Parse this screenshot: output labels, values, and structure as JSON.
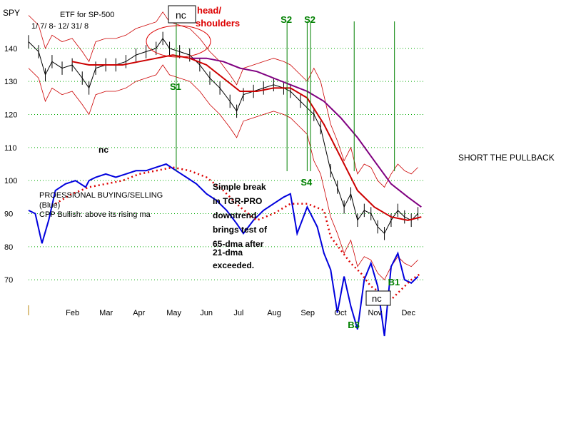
{
  "chart_data": {
    "type": "line",
    "title": "ETF for SP-500",
    "ticker": "SPY",
    "date_range": "1/ 7/ 8- 12/ 31/ 8",
    "x_months": [
      "Feb",
      "Mar",
      "Apr",
      "May",
      "Jun",
      "Jul",
      "Aug",
      "Sep",
      "Oct",
      "Nov",
      "Dec"
    ],
    "y_ticks": [
      140,
      130,
      120,
      110,
      100,
      90,
      80,
      70
    ],
    "ylim": [
      64,
      146
    ],
    "xlim_months": [
      0.2,
      12
    ],
    "series": [
      {
        "name": "PROESSIONAL BUYING/SELLING (Blue)",
        "color": "#0000dd",
        "points": [
          [
            0.2,
            91
          ],
          [
            0.4,
            90
          ],
          [
            0.6,
            81
          ],
          [
            0.8,
            88
          ],
          [
            1.0,
            97
          ],
          [
            1.3,
            99
          ],
          [
            1.6,
            100
          ],
          [
            1.9,
            98
          ],
          [
            2.0,
            100
          ],
          [
            2.2,
            101
          ],
          [
            2.5,
            102
          ],
          [
            2.8,
            101
          ],
          [
            3.1,
            102
          ],
          [
            3.4,
            103
          ],
          [
            3.7,
            103
          ],
          [
            4.0,
            104
          ],
          [
            4.3,
            105
          ],
          [
            4.6,
            103
          ],
          [
            4.9,
            101
          ],
          [
            5.2,
            99
          ],
          [
            5.5,
            96
          ],
          [
            5.8,
            94
          ],
          [
            6.1,
            91
          ],
          [
            6.4,
            87
          ],
          [
            6.6,
            84
          ],
          [
            6.9,
            88
          ],
          [
            7.2,
            91
          ],
          [
            7.5,
            93
          ],
          [
            7.8,
            95
          ],
          [
            8.0,
            96
          ],
          [
            8.2,
            84
          ],
          [
            8.5,
            92
          ],
          [
            8.8,
            86
          ],
          [
            9.0,
            78
          ],
          [
            9.2,
            73
          ],
          [
            9.4,
            60
          ],
          [
            9.6,
            71
          ],
          [
            9.8,
            62
          ],
          [
            10.0,
            55
          ],
          [
            10.2,
            70
          ],
          [
            10.4,
            75
          ],
          [
            10.6,
            68
          ],
          [
            10.8,
            53
          ],
          [
            11.0,
            74
          ],
          [
            11.2,
            78
          ],
          [
            11.4,
            70
          ],
          [
            11.6,
            69
          ],
          [
            11.8,
            71
          ]
        ]
      },
      {
        "name": "CPP 65-dma (red dotted)",
        "color": "#dd0000",
        "points": [
          [
            1.0,
            93
          ],
          [
            1.5,
            96
          ],
          [
            2.0,
            98
          ],
          [
            2.5,
            99
          ],
          [
            3.0,
            100
          ],
          [
            3.5,
            102
          ],
          [
            4.0,
            103
          ],
          [
            4.5,
            104
          ],
          [
            5.0,
            103
          ],
          [
            5.5,
            101
          ],
          [
            6.0,
            97
          ],
          [
            6.5,
            92
          ],
          [
            7.0,
            88
          ],
          [
            7.5,
            90
          ],
          [
            8.0,
            93
          ],
          [
            8.5,
            93
          ],
          [
            9.0,
            91
          ],
          [
            9.2,
            83
          ],
          [
            9.5,
            79
          ],
          [
            9.8,
            75
          ],
          [
            10.1,
            72
          ],
          [
            10.4,
            68
          ],
          [
            10.7,
            66
          ],
          [
            11.0,
            64
          ],
          [
            11.3,
            67
          ],
          [
            11.6,
            70
          ],
          [
            11.9,
            72
          ]
        ]
      },
      {
        "name": "SPY",
        "color": "#000000",
        "points": [
          [
            0.2,
            142
          ],
          [
            0.5,
            139
          ],
          [
            0.7,
            132
          ],
          [
            0.9,
            136
          ],
          [
            1.2,
            134
          ],
          [
            1.5,
            135
          ],
          [
            1.8,
            131
          ],
          [
            2.0,
            128
          ],
          [
            2.2,
            134
          ],
          [
            2.5,
            135
          ],
          [
            2.8,
            135
          ],
          [
            3.1,
            136
          ],
          [
            3.4,
            138
          ],
          [
            3.7,
            139
          ],
          [
            4.0,
            140
          ],
          [
            4.2,
            143
          ],
          [
            4.4,
            140
          ],
          [
            4.7,
            139
          ],
          [
            5.0,
            138
          ],
          [
            5.3,
            135
          ],
          [
            5.6,
            131
          ],
          [
            5.9,
            128
          ],
          [
            6.2,
            124
          ],
          [
            6.4,
            121
          ],
          [
            6.6,
            126
          ],
          [
            6.9,
            127
          ],
          [
            7.2,
            128
          ],
          [
            7.5,
            129
          ],
          [
            7.8,
            128
          ],
          [
            8.0,
            127
          ],
          [
            8.3,
            124
          ],
          [
            8.5,
            122
          ],
          [
            8.7,
            120
          ],
          [
            8.9,
            116
          ],
          [
            9.2,
            103
          ],
          [
            9.4,
            98
          ],
          [
            9.6,
            92
          ],
          [
            9.8,
            96
          ],
          [
            10.0,
            88
          ],
          [
            10.2,
            91
          ],
          [
            10.4,
            90
          ],
          [
            10.6,
            86
          ],
          [
            10.8,
            84
          ],
          [
            11.0,
            88
          ],
          [
            11.2,
            91
          ],
          [
            11.4,
            89
          ],
          [
            11.6,
            88
          ],
          [
            11.8,
            90
          ]
        ]
      },
      {
        "name": "purple moving average",
        "color": "#800080",
        "points": [
          [
            5.0,
            137
          ],
          [
            5.5,
            137
          ],
          [
            6.0,
            136
          ],
          [
            6.5,
            134
          ],
          [
            7.0,
            133
          ],
          [
            7.5,
            131
          ],
          [
            8.0,
            129
          ],
          [
            8.5,
            127
          ],
          [
            9.0,
            124
          ],
          [
            9.5,
            119
          ],
          [
            10.0,
            113
          ],
          [
            10.5,
            106
          ],
          [
            11.0,
            99
          ],
          [
            11.5,
            95
          ],
          [
            11.9,
            92
          ]
        ]
      },
      {
        "name": "red moving average",
        "color": "#cc0000",
        "points": [
          [
            1.5,
            136
          ],
          [
            2.0,
            135
          ],
          [
            2.5,
            135
          ],
          [
            3.0,
            135
          ],
          [
            3.5,
            136
          ],
          [
            4.0,
            137
          ],
          [
            4.5,
            138
          ],
          [
            5.0,
            137
          ],
          [
            5.5,
            135
          ],
          [
            6.0,
            131
          ],
          [
            6.5,
            127
          ],
          [
            7.0,
            127
          ],
          [
            7.5,
            128
          ],
          [
            8.0,
            128
          ],
          [
            8.5,
            125
          ],
          [
            9.0,
            117
          ],
          [
            9.5,
            107
          ],
          [
            10.0,
            97
          ],
          [
            10.5,
            92
          ],
          [
            11.0,
            89
          ],
          [
            11.5,
            88
          ],
          [
            11.9,
            89
          ]
        ]
      }
    ],
    "signals": [
      {
        "label": "S1",
        "color": "#008000",
        "month": 4.6
      },
      {
        "label": "S2",
        "color": "#008000",
        "month": 7.9
      },
      {
        "label": "S2",
        "color": "#008000",
        "month": 8.6
      },
      {
        "label": "S4",
        "color": "#008000",
        "month": 8.5
      },
      {
        "label": "B1",
        "color": "#008000",
        "month": 11.1
      },
      {
        "label": "B3",
        "color": "#008000",
        "month": 9.9
      }
    ],
    "annotations": {
      "head_shoulders": "head/\nshoulders",
      "nc_top": "nc",
      "nc_left": "nc",
      "nc_bottom": "nc",
      "short_note": "SHORT THE PULLBACK",
      "legend_line1": "PROESSIONAL BUYING/SELLING",
      "legend_line2": "(Blue)",
      "legend_line3": "CPP Bullish: above its rising ma",
      "break_note": [
        "Simple break",
        "in TGR-PRO",
        "downtrend",
        "brings test of",
        "65-dma after",
        "21-dma",
        "exceeded."
      ]
    }
  }
}
